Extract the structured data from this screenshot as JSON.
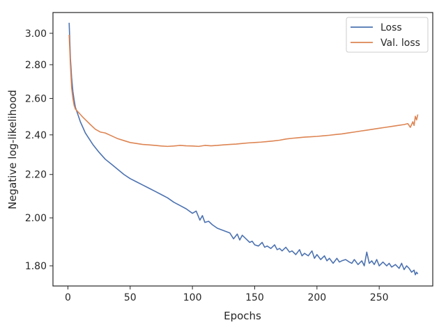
{
  "chart_data": {
    "type": "line",
    "title": "",
    "xlabel": "Epochs",
    "ylabel": "Negative log-likelihood",
    "xlim": [
      -12,
      293
    ],
    "ylim": [
      1.722,
      3.14
    ],
    "y_scale": "log",
    "xticks": [
      0,
      50,
      100,
      150,
      200,
      250
    ],
    "yticks": [
      1.8,
      2.0,
      2.2,
      2.4,
      2.6,
      2.8,
      3.0
    ],
    "ytick_labels": [
      "1.80",
      "2.00",
      "2.20",
      "2.40",
      "2.60",
      "2.80",
      "3.00"
    ],
    "grid": false,
    "legend_position": "top-right",
    "series": [
      {
        "name": "Loss",
        "color": "#4c72b0",
        "points": [
          [
            1,
            3.07
          ],
          [
            2,
            2.84
          ],
          [
            3,
            2.72
          ],
          [
            4,
            2.64
          ],
          [
            5,
            2.59
          ],
          [
            6,
            2.55
          ],
          [
            8,
            2.51
          ],
          [
            10,
            2.47
          ],
          [
            12,
            2.44
          ],
          [
            14,
            2.41
          ],
          [
            17,
            2.38
          ],
          [
            20,
            2.35
          ],
          [
            25,
            2.31
          ],
          [
            30,
            2.275
          ],
          [
            35,
            2.25
          ],
          [
            40,
            2.225
          ],
          [
            45,
            2.2
          ],
          [
            50,
            2.18
          ],
          [
            55,
            2.165
          ],
          [
            60,
            2.15
          ],
          [
            65,
            2.135
          ],
          [
            70,
            2.12
          ],
          [
            75,
            2.105
          ],
          [
            80,
            2.09
          ],
          [
            85,
            2.07
          ],
          [
            90,
            2.055
          ],
          [
            95,
            2.04
          ],
          [
            100,
            2.02
          ],
          [
            103,
            2.03
          ],
          [
            106,
            1.99
          ],
          [
            108,
            2.01
          ],
          [
            110,
            1.98
          ],
          [
            113,
            1.985
          ],
          [
            116,
            1.97
          ],
          [
            120,
            1.955
          ],
          [
            125,
            1.945
          ],
          [
            130,
            1.935
          ],
          [
            133,
            1.91
          ],
          [
            136,
            1.93
          ],
          [
            138,
            1.905
          ],
          [
            140,
            1.925
          ],
          [
            143,
            1.91
          ],
          [
            146,
            1.895
          ],
          [
            148,
            1.9
          ],
          [
            150,
            1.885
          ],
          [
            153,
            1.88
          ],
          [
            156,
            1.895
          ],
          [
            158,
            1.875
          ],
          [
            160,
            1.88
          ],
          [
            163,
            1.87
          ],
          [
            166,
            1.885
          ],
          [
            168,
            1.865
          ],
          [
            170,
            1.87
          ],
          [
            172,
            1.86
          ],
          [
            175,
            1.875
          ],
          [
            178,
            1.855
          ],
          [
            180,
            1.86
          ],
          [
            183,
            1.845
          ],
          [
            186,
            1.865
          ],
          [
            188,
            1.84
          ],
          [
            190,
            1.85
          ],
          [
            193,
            1.84
          ],
          [
            196,
            1.86
          ],
          [
            198,
            1.83
          ],
          [
            200,
            1.845
          ],
          [
            203,
            1.825
          ],
          [
            206,
            1.84
          ],
          [
            208,
            1.82
          ],
          [
            210,
            1.83
          ],
          [
            213,
            1.81
          ],
          [
            216,
            1.83
          ],
          [
            218,
            1.815
          ],
          [
            220,
            1.82
          ],
          [
            223,
            1.825
          ],
          [
            226,
            1.815
          ],
          [
            228,
            1.81
          ],
          [
            230,
            1.825
          ],
          [
            233,
            1.805
          ],
          [
            236,
            1.82
          ],
          [
            238,
            1.8
          ],
          [
            240,
            1.855
          ],
          [
            242,
            1.81
          ],
          [
            244,
            1.82
          ],
          [
            246,
            1.805
          ],
          [
            248,
            1.825
          ],
          [
            250,
            1.8
          ],
          [
            253,
            1.815
          ],
          [
            256,
            1.8
          ],
          [
            258,
            1.81
          ],
          [
            260,
            1.795
          ],
          [
            263,
            1.805
          ],
          [
            266,
            1.79
          ],
          [
            268,
            1.81
          ],
          [
            270,
            1.785
          ],
          [
            272,
            1.8
          ],
          [
            274,
            1.79
          ],
          [
            276,
            1.775
          ],
          [
            278,
            1.783
          ],
          [
            279,
            1.765
          ],
          [
            280,
            1.775
          ],
          [
            281,
            1.768
          ]
        ]
      },
      {
        "name": "Val. loss",
        "color": "#dd8452",
        "points": [
          [
            1,
            2.99
          ],
          [
            2,
            2.8
          ],
          [
            3,
            2.66
          ],
          [
            4,
            2.6
          ],
          [
            5,
            2.56
          ],
          [
            6,
            2.54
          ],
          [
            8,
            2.525
          ],
          [
            10,
            2.51
          ],
          [
            12,
            2.495
          ],
          [
            15,
            2.475
          ],
          [
            18,
            2.455
          ],
          [
            22,
            2.43
          ],
          [
            26,
            2.415
          ],
          [
            30,
            2.41
          ],
          [
            35,
            2.395
          ],
          [
            40,
            2.38
          ],
          [
            45,
            2.37
          ],
          [
            50,
            2.36
          ],
          [
            55,
            2.355
          ],
          [
            60,
            2.35
          ],
          [
            65,
            2.348
          ],
          [
            70,
            2.345
          ],
          [
            75,
            2.342
          ],
          [
            80,
            2.34
          ],
          [
            85,
            2.342
          ],
          [
            90,
            2.345
          ],
          [
            95,
            2.343
          ],
          [
            100,
            2.342
          ],
          [
            105,
            2.34
          ],
          [
            110,
            2.345
          ],
          [
            115,
            2.343
          ],
          [
            120,
            2.345
          ],
          [
            125,
            2.348
          ],
          [
            130,
            2.35
          ],
          [
            135,
            2.352
          ],
          [
            140,
            2.355
          ],
          [
            145,
            2.358
          ],
          [
            150,
            2.36
          ],
          [
            155,
            2.362
          ],
          [
            160,
            2.365
          ],
          [
            165,
            2.368
          ],
          [
            170,
            2.372
          ],
          [
            175,
            2.378
          ],
          [
            180,
            2.382
          ],
          [
            185,
            2.385
          ],
          [
            190,
            2.388
          ],
          [
            195,
            2.39
          ],
          [
            200,
            2.392
          ],
          [
            205,
            2.395
          ],
          [
            210,
            2.398
          ],
          [
            215,
            2.402
          ],
          [
            220,
            2.405
          ],
          [
            225,
            2.41
          ],
          [
            230,
            2.415
          ],
          [
            235,
            2.42
          ],
          [
            240,
            2.425
          ],
          [
            245,
            2.43
          ],
          [
            250,
            2.435
          ],
          [
            255,
            2.44
          ],
          [
            260,
            2.445
          ],
          [
            265,
            2.45
          ],
          [
            270,
            2.455
          ],
          [
            273,
            2.46
          ],
          [
            275,
            2.44
          ],
          [
            277,
            2.47
          ],
          [
            278,
            2.45
          ],
          [
            279,
            2.5
          ],
          [
            280,
            2.48
          ],
          [
            281,
            2.51
          ]
        ]
      }
    ]
  }
}
